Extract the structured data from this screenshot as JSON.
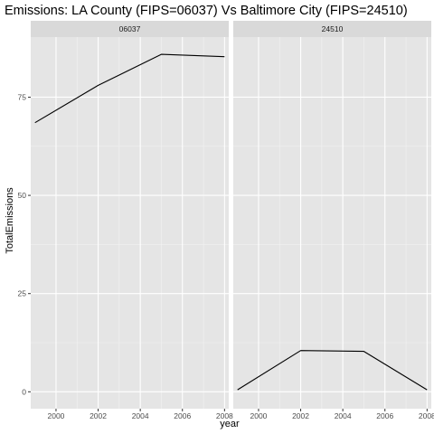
{
  "chart_data": {
    "type": "line",
    "title": "Emissions: LA County (FIPS=06037) Vs Baltimore City (FIPS=24510)",
    "xlabel": "year",
    "ylabel": "TotalEmissions",
    "xlim": [
      1998.8,
      2008.2
    ],
    "ylim": [
      -4.3,
      90.3
    ],
    "x_ticks": [
      2000,
      2002,
      2004,
      2006,
      2008
    ],
    "y_ticks": [
      0,
      25,
      50,
      75
    ],
    "grid": true,
    "legend": "none",
    "line_color": "#000000",
    "panel_background": "#e5e5e5",
    "strip_background": "#d9d9d9",
    "facets": [
      {
        "label": "06037",
        "series": [
          {
            "x": [
              1999,
              2002,
              2005,
              2008
            ],
            "y": [
              68.5,
              78.0,
              85.9,
              85.3
            ]
          }
        ]
      },
      {
        "label": "24510",
        "series": [
          {
            "x": [
              1999,
              2002,
              2005,
              2008
            ],
            "y": [
              0.5,
              10.5,
              10.3,
              0.5
            ]
          }
        ]
      }
    ]
  }
}
